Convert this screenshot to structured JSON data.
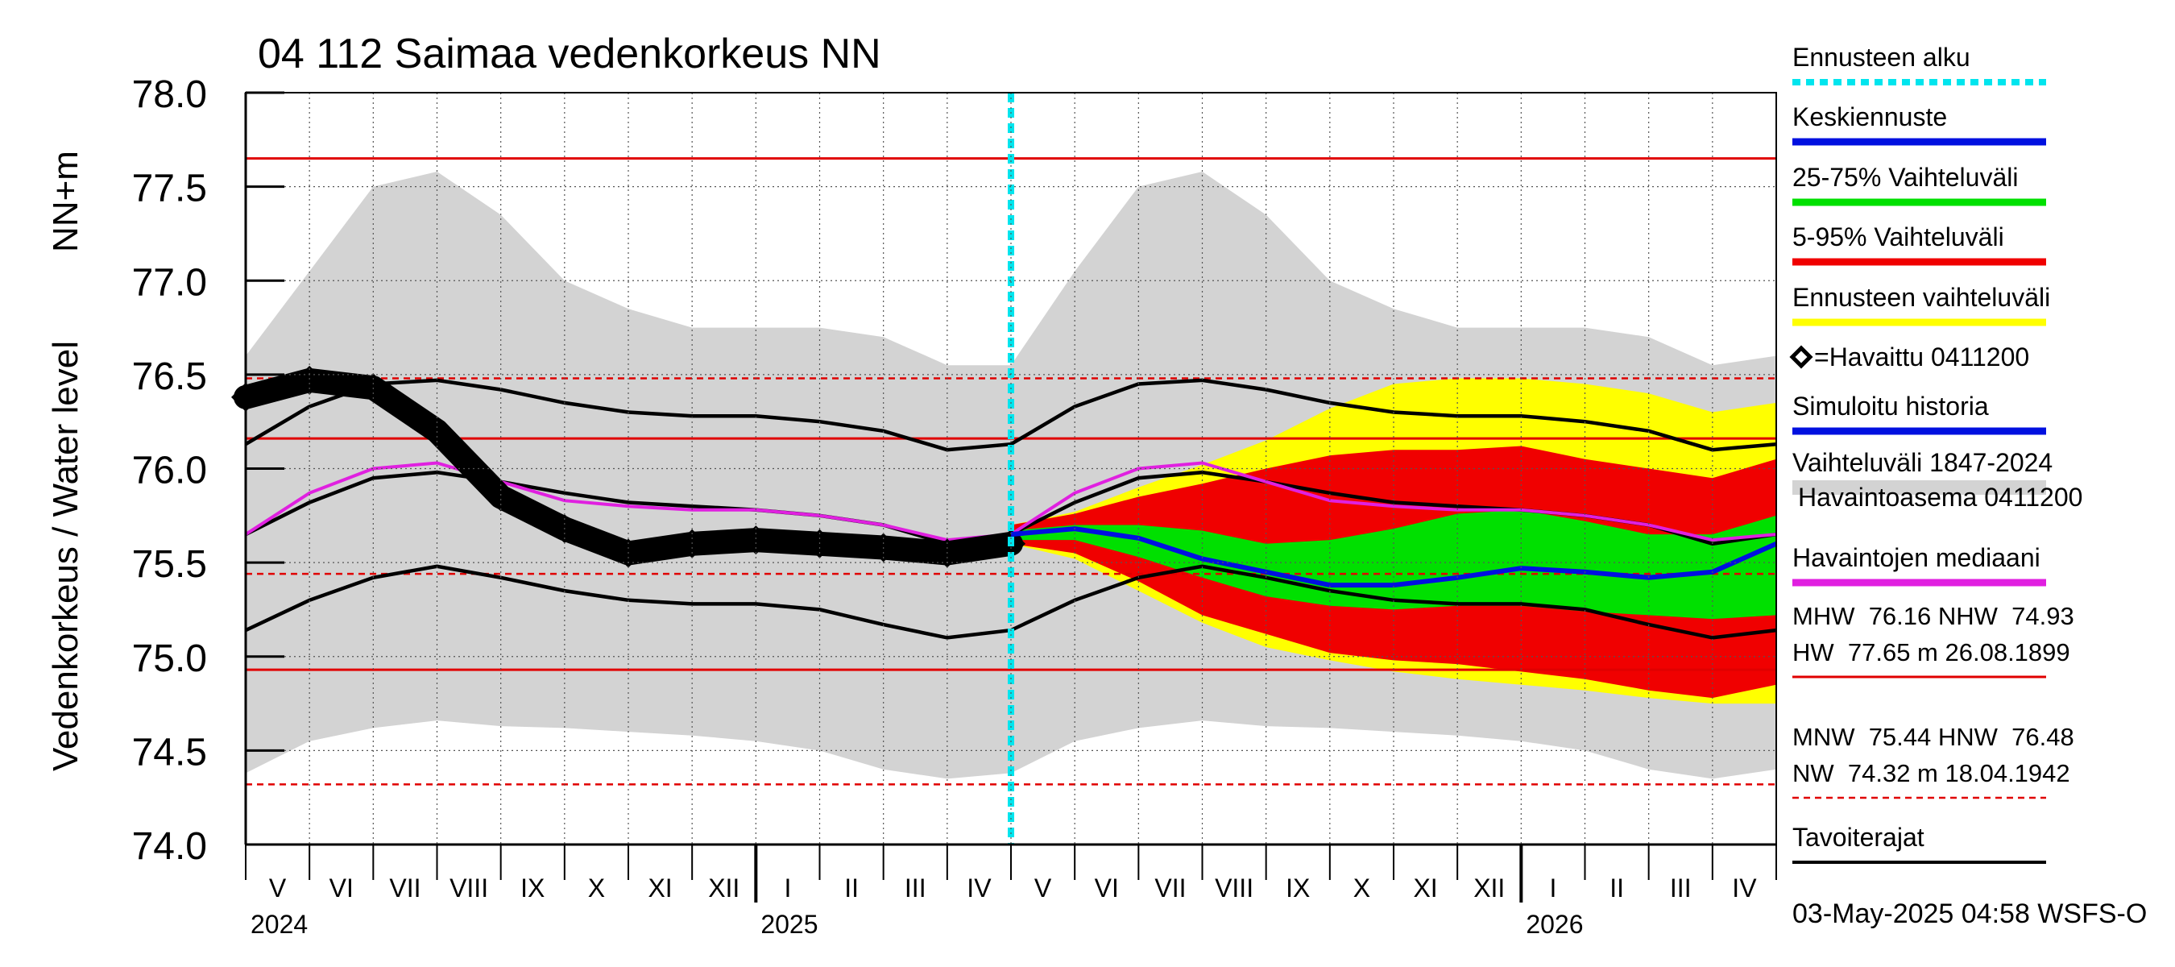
{
  "chart_data": {
    "type": "area",
    "title": "04 112 Saimaa vedenkorkeus NN",
    "ylabel_left": "Vedenkorkeus / Water level",
    "ylabel_unit": "NN+m",
    "ylim": [
      74.0,
      78.0
    ],
    "yticks": [
      "74.0",
      "74.5",
      "75.0",
      "75.5",
      "76.0",
      "76.5",
      "77.0",
      "77.5",
      "78.0"
    ],
    "month_labels": [
      "V",
      "VI",
      "VII",
      "VIII",
      "IX",
      "X",
      "XI",
      "XII",
      "I",
      "II",
      "III",
      "IV",
      "V",
      "VI",
      "VII",
      "VIII",
      "IX",
      "X",
      "XI",
      "XII",
      "I",
      "II",
      "III",
      "IV"
    ],
    "year_labels": [
      "2024",
      "2025",
      "2026"
    ],
    "forecast_start_month": 12,
    "reference_lines": [
      {
        "name": "HW",
        "value": 77.65,
        "style": "solid",
        "color": "#e00000"
      },
      {
        "name": "HNW",
        "value": 76.48,
        "style": "dashed",
        "color": "#e00000"
      },
      {
        "name": "MHW",
        "value": 76.16,
        "style": "solid",
        "color": "#e00000"
      },
      {
        "name": "MNW",
        "value": 75.44,
        "style": "dashed",
        "color": "#e00000"
      },
      {
        "name": "NHW",
        "value": 74.93,
        "style": "solid",
        "color": "#e00000"
      },
      {
        "name": "NW",
        "value": 74.32,
        "style": "dashed",
        "color": "#e00000"
      }
    ],
    "series_points_month_index": [
      0,
      1,
      2,
      3,
      4,
      5,
      6,
      7,
      8,
      9,
      10,
      11,
      12,
      13,
      14,
      15,
      16,
      17,
      18,
      19,
      20,
      21,
      22,
      23,
      24
    ],
    "history_range": {
      "upper": [
        76.6,
        77.05,
        77.5,
        77.58,
        77.35,
        77.0,
        76.85,
        76.75,
        76.75,
        76.75,
        76.7,
        76.55,
        76.55,
        77.05,
        77.5,
        77.58,
        77.35,
        77.0,
        76.85,
        76.75,
        76.75,
        76.75,
        76.7,
        76.55,
        76.6
      ],
      "lower": [
        74.38,
        74.55,
        74.62,
        74.66,
        74.63,
        74.62,
        74.6,
        74.58,
        74.55,
        74.5,
        74.4,
        74.35,
        74.38,
        74.55,
        74.62,
        74.66,
        74.63,
        74.62,
        74.6,
        74.58,
        74.55,
        74.5,
        74.4,
        74.35,
        74.4
      ]
    },
    "target_bounds": {
      "upper": [
        76.13,
        76.33,
        76.45,
        76.47,
        76.42,
        76.35,
        76.3,
        76.28,
        76.28,
        76.25,
        76.2,
        76.1,
        76.13,
        76.33,
        76.45,
        76.47,
        76.42,
        76.35,
        76.3,
        76.28,
        76.28,
        76.25,
        76.2,
        76.1,
        76.13
      ],
      "middle": [
        75.65,
        75.82,
        75.95,
        75.98,
        75.93,
        75.87,
        75.82,
        75.8,
        75.78,
        75.75,
        75.7,
        75.6,
        75.65,
        75.82,
        75.95,
        75.98,
        75.93,
        75.87,
        75.82,
        75.8,
        75.78,
        75.75,
        75.7,
        75.6,
        75.65
      ],
      "lower": [
        75.14,
        75.3,
        75.42,
        75.48,
        75.42,
        75.35,
        75.3,
        75.28,
        75.28,
        75.25,
        75.17,
        75.1,
        75.14,
        75.3,
        75.42,
        75.48,
        75.42,
        75.35,
        75.3,
        75.28,
        75.28,
        75.25,
        75.17,
        75.1,
        75.14
      ]
    },
    "median": [
      75.65,
      75.87,
      76.0,
      76.03,
      75.93,
      75.83,
      75.8,
      75.78,
      75.78,
      75.75,
      75.7,
      75.62,
      75.65,
      75.87,
      76.0,
      76.03,
      75.93,
      75.83,
      75.8,
      75.78,
      75.78,
      75.75,
      75.7,
      75.62,
      75.65
    ],
    "observed": {
      "name": "=Havaittu 0411200",
      "values": [
        76.38,
        76.47,
        76.43,
        76.2,
        75.85,
        75.68,
        75.55,
        75.6,
        75.62,
        75.6,
        75.58,
        75.55,
        75.6
      ]
    },
    "forecast": {
      "month_index": [
        12,
        13,
        14,
        15,
        16,
        17,
        18,
        19,
        20,
        21,
        22,
        23,
        24
      ],
      "mean": [
        75.65,
        75.68,
        75.63,
        75.52,
        75.45,
        75.38,
        75.38,
        75.42,
        75.47,
        75.45,
        75.42,
        75.45,
        75.6
      ],
      "p25": [
        75.62,
        75.62,
        75.53,
        75.42,
        75.32,
        75.27,
        75.25,
        75.27,
        75.27,
        75.24,
        75.22,
        75.2,
        75.22
      ],
      "p75": [
        75.67,
        75.7,
        75.7,
        75.67,
        75.6,
        75.62,
        75.68,
        75.76,
        75.78,
        75.72,
        75.65,
        75.65,
        75.75
      ],
      "p5": [
        75.6,
        75.55,
        75.4,
        75.22,
        75.12,
        75.02,
        74.98,
        74.96,
        74.92,
        74.88,
        74.82,
        74.78,
        74.85
      ],
      "p95": [
        75.7,
        75.76,
        75.85,
        75.92,
        76.0,
        76.07,
        76.1,
        76.1,
        76.12,
        76.05,
        76.0,
        75.95,
        76.05
      ],
      "min": [
        75.6,
        75.52,
        75.35,
        75.18,
        75.05,
        74.98,
        74.92,
        74.88,
        74.85,
        74.82,
        74.78,
        74.75,
        74.75
      ],
      "max": [
        75.7,
        75.77,
        75.9,
        76.02,
        76.15,
        76.32,
        76.45,
        76.48,
        76.48,
        76.45,
        76.4,
        76.3,
        76.35
      ]
    },
    "simulated_history": {
      "month_index": [
        0,
        1,
        2,
        3,
        4,
        5,
        6,
        7,
        8,
        9,
        10,
        11,
        12
      ],
      "values": [
        76.38,
        76.5,
        76.47,
        76.2,
        75.85,
        75.68,
        75.55,
        75.6,
        75.62,
        75.6,
        75.58,
        75.55,
        75.6
      ]
    }
  },
  "legend": {
    "items": [
      {
        "label": "Ennusteen alku",
        "color": "#00e5ee",
        "style": "dotted"
      },
      {
        "label": "Keskiennuste",
        "color": "#0010e0",
        "style": "solid"
      },
      {
        "label": "25-75% Vaihteluväli",
        "color": "#00e000",
        "style": "solid"
      },
      {
        "label": "5-95% Vaihteluväli",
        "color": "#f00000",
        "style": "solid"
      },
      {
        "label": "Ennusteen vaihteluväli",
        "color": "#ffff00",
        "style": "solid"
      },
      {
        "label": "=Havaittu 0411200",
        "color": "#000000",
        "style": "marker"
      },
      {
        "label": "Simuloitu historia",
        "color": "#0010e0",
        "style": "solid"
      },
      {
        "label": "Vaihteluväli 1847-2024",
        "color": "#d3d3d3",
        "style": "solid"
      },
      {
        "label": "Havaintoasema 0411200",
        "color": "#d3d3d3",
        "style": "none"
      },
      {
        "label": "Havaintojen mediaani",
        "color": "#e020e0",
        "style": "solid"
      }
    ],
    "stats": [
      "MHW  76.16 NHW  74.93",
      "HW  77.65 m 26.08.1899",
      "MNW  75.44 HNW  76.48",
      "NW  74.32 m 18.04.1942"
    ],
    "target_label": "Tavoiterajat"
  },
  "footer": "03-May-2025 04:58 WSFS-O",
  "colors": {
    "history_band": "#d3d3d3",
    "forecast_range": "#ffff00",
    "band_5_95": "#f00000",
    "band_25_75": "#00e000",
    "mean": "#0010e0",
    "median": "#e020e0",
    "forecast_start": "#00e5ee",
    "reference": "#e00000"
  }
}
